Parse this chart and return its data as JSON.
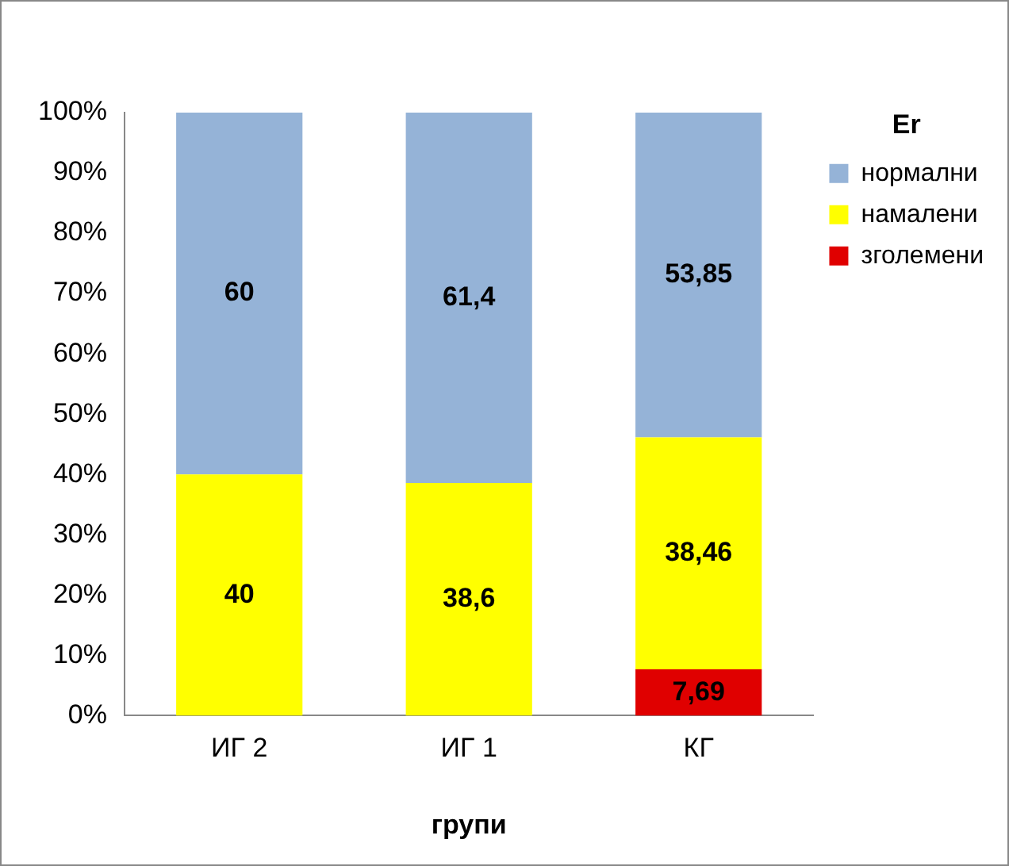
{
  "chart_data": {
    "type": "bar",
    "stacked": true,
    "xlabel": "групи",
    "legend_title": "Er",
    "legend": "top right",
    "grid": false,
    "categories": [
      "ИГ 2",
      "ИГ 1",
      "КГ"
    ],
    "ylim": [
      0,
      100
    ],
    "yticks": [
      {
        "value": 0,
        "label": "0%"
      },
      {
        "value": 10,
        "label": "10%"
      },
      {
        "value": 20,
        "label": "20%"
      },
      {
        "value": 30,
        "label": "30%"
      },
      {
        "value": 40,
        "label": "40%"
      },
      {
        "value": 50,
        "label": "50%"
      },
      {
        "value": 60,
        "label": "60%"
      },
      {
        "value": 70,
        "label": "70%"
      },
      {
        "value": 80,
        "label": "80%"
      },
      {
        "value": 90,
        "label": "90%"
      },
      {
        "value": 100,
        "label": "100%"
      }
    ],
    "series": [
      {
        "name": "зголемени",
        "color": "#e00000",
        "values": [
          0,
          0,
          7.69
        ],
        "value_labels": [
          null,
          null,
          "7,69"
        ]
      },
      {
        "name": "намалени",
        "color": "#ffff00",
        "values": [
          40,
          38.6,
          38.46
        ],
        "value_labels": [
          "40",
          "38,6",
          "38,46"
        ]
      },
      {
        "name": "нормални",
        "color": "#95b3d7",
        "values": [
          60,
          61.4,
          53.85
        ],
        "value_labels": [
          "60",
          "61,4",
          "53,85"
        ]
      }
    ]
  }
}
